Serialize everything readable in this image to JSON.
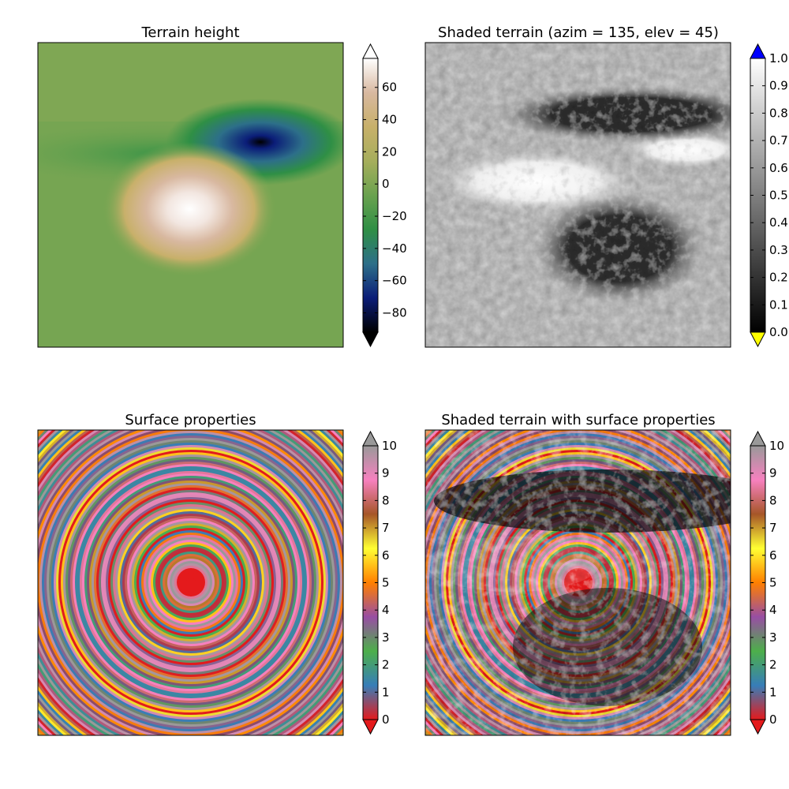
{
  "figure": {
    "background": "#ffffff"
  },
  "chart_data": [
    {
      "type": "heatmap",
      "title": "Terrain height",
      "colormap": "gist_earth",
      "description_of_field": "terrain elevation: a high peak left-center, a deep trough upper-right, flat plains elsewhere",
      "colorbar": {
        "ticks": [
          "80",
          "60",
          "40",
          "20",
          "0",
          "20",
          "40",
          "60"
        ],
        "tick_values": [
          -80,
          -60,
          -40,
          -20,
          0,
          20,
          40,
          60
        ],
        "tick_signs": [
          "−",
          "−",
          "−",
          "−",
          "",
          "",
          "",
          ""
        ],
        "range": [
          -92,
          78
        ],
        "extend": "both",
        "under_color": "#000000",
        "over_color": "#ffffff"
      },
      "axes_ticks_visible": false
    },
    {
      "type": "heatmap",
      "title": "Shaded terrain (azim = 135, elev = 45)",
      "colormap": "gray",
      "colorbar": {
        "ticks": [
          "0.0",
          "0.1",
          "0.2",
          "0.3",
          "0.4",
          "0.5",
          "0.6",
          "0.7",
          "0.8",
          "0.9",
          "1.0"
        ],
        "tick_values": [
          0,
          0.1,
          0.2,
          0.3,
          0.4,
          0.5,
          0.6,
          0.7,
          0.8,
          0.9,
          1.0
        ],
        "range": [
          0,
          1
        ],
        "extend": "both",
        "under_color": "#ffff00",
        "over_color": "#0000ff"
      },
      "axes_ticks_visible": false
    },
    {
      "type": "heatmap",
      "title": "Surface properties",
      "colormap": "Set1",
      "colorbar": {
        "ticks": [
          "0",
          "1",
          "2",
          "3",
          "4",
          "5",
          "6",
          "7",
          "8",
          "9",
          "10"
        ],
        "tick_values": [
          0,
          1,
          2,
          3,
          4,
          5,
          6,
          7,
          8,
          9,
          10
        ],
        "range": [
          0,
          10
        ],
        "extend": "both",
        "under_color": "#e41a1c",
        "over_color": "#999999"
      },
      "axes_ticks_visible": false
    },
    {
      "type": "heatmap",
      "title": "Shaded terrain with surface properties",
      "colormap": "Set1",
      "colorbar": {
        "ticks": [
          "0",
          "1",
          "2",
          "3",
          "4",
          "5",
          "6",
          "7",
          "8",
          "9",
          "10"
        ],
        "tick_values": [
          0,
          1,
          2,
          3,
          4,
          5,
          6,
          7,
          8,
          9,
          10
        ],
        "range": [
          0,
          10
        ],
        "extend": "both",
        "under_color": "#e41a1c",
        "over_color": "#999999"
      },
      "axes_ticks_visible": false
    }
  ],
  "colormaps": {
    "gist_earth": [
      "#000000",
      "#0b1d78",
      "#2d6f89",
      "#2f8f45",
      "#6aa24f",
      "#a6ae5c",
      "#c8b06a",
      "#d8b8a0",
      "#ffffff"
    ],
    "gray": [
      "#000000",
      "#ffffff"
    ],
    "Set1": [
      "#e41a1c",
      "#377eb8",
      "#4daf4a",
      "#984ea3",
      "#ff7f00",
      "#ffff33",
      "#a65628",
      "#f781bf",
      "#999999"
    ]
  }
}
